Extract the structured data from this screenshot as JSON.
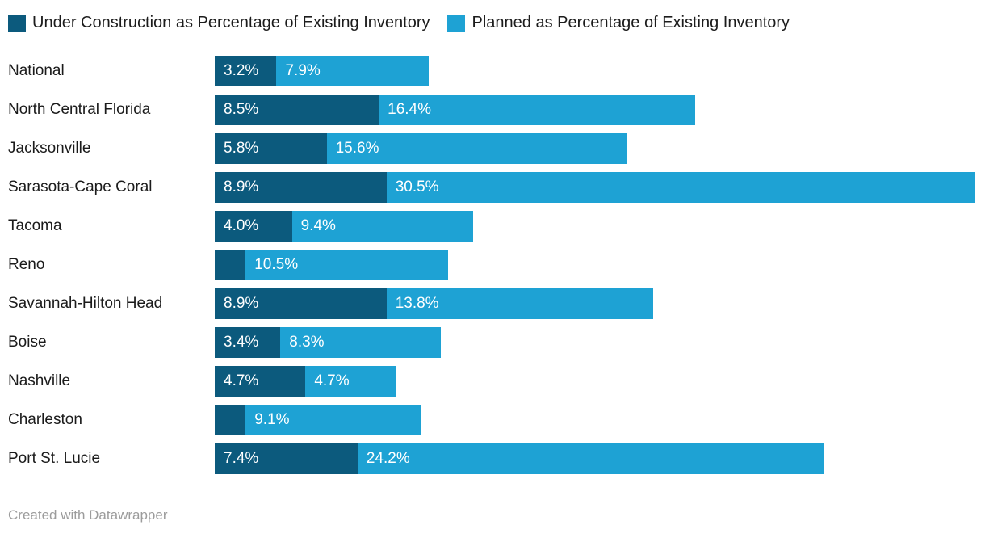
{
  "legend": {
    "items": [
      {
        "label": "Under Construction as Percentage of Existing Inventory",
        "color": "#0c5a7d"
      },
      {
        "label": "Planned as Percentage of Existing Inventory",
        "color": "#1ea2d4"
      }
    ]
  },
  "footer": {
    "credit": "Created with Datawrapper"
  },
  "chart_data": {
    "type": "bar",
    "orientation": "horizontal",
    "stacked": true,
    "title": "",
    "xlabel": "",
    "ylabel": "",
    "grid": false,
    "legend_position": "top",
    "x_axis_max_estimate": 39.4,
    "categories": [
      "National",
      "North Central Florida",
      "Jacksonville",
      "Sarasota-Cape Coral",
      "Tacoma",
      "Reno",
      "Savannah-Hilton Head",
      "Boise",
      "Nashville",
      "Charleston",
      "Port St. Lucie"
    ],
    "series": [
      {
        "name": "Under Construction as Percentage of Existing Inventory",
        "color": "#0c5a7d",
        "values": [
          3.2,
          8.5,
          5.8,
          8.9,
          4.0,
          1.6,
          8.9,
          3.4,
          4.7,
          1.6,
          7.4
        ],
        "bar_labels": [
          "3.2%",
          "8.5%",
          "5.8%",
          "8.9%",
          "4.0%",
          "",
          "8.9%",
          "3.4%",
          "4.7%",
          "",
          "7.4%"
        ]
      },
      {
        "name": "Planned as Percentage of Existing Inventory",
        "color": "#1ea2d4",
        "values": [
          7.9,
          16.4,
          15.6,
          30.5,
          9.4,
          10.5,
          13.8,
          8.3,
          4.7,
          9.1,
          24.2
        ],
        "bar_labels": [
          "7.9%",
          "16.4%",
          "15.6%",
          "30.5%",
          "9.4%",
          "10.5%",
          "13.8%",
          "8.3%",
          "4.7%",
          "9.1%",
          "24.2%"
        ]
      }
    ]
  }
}
